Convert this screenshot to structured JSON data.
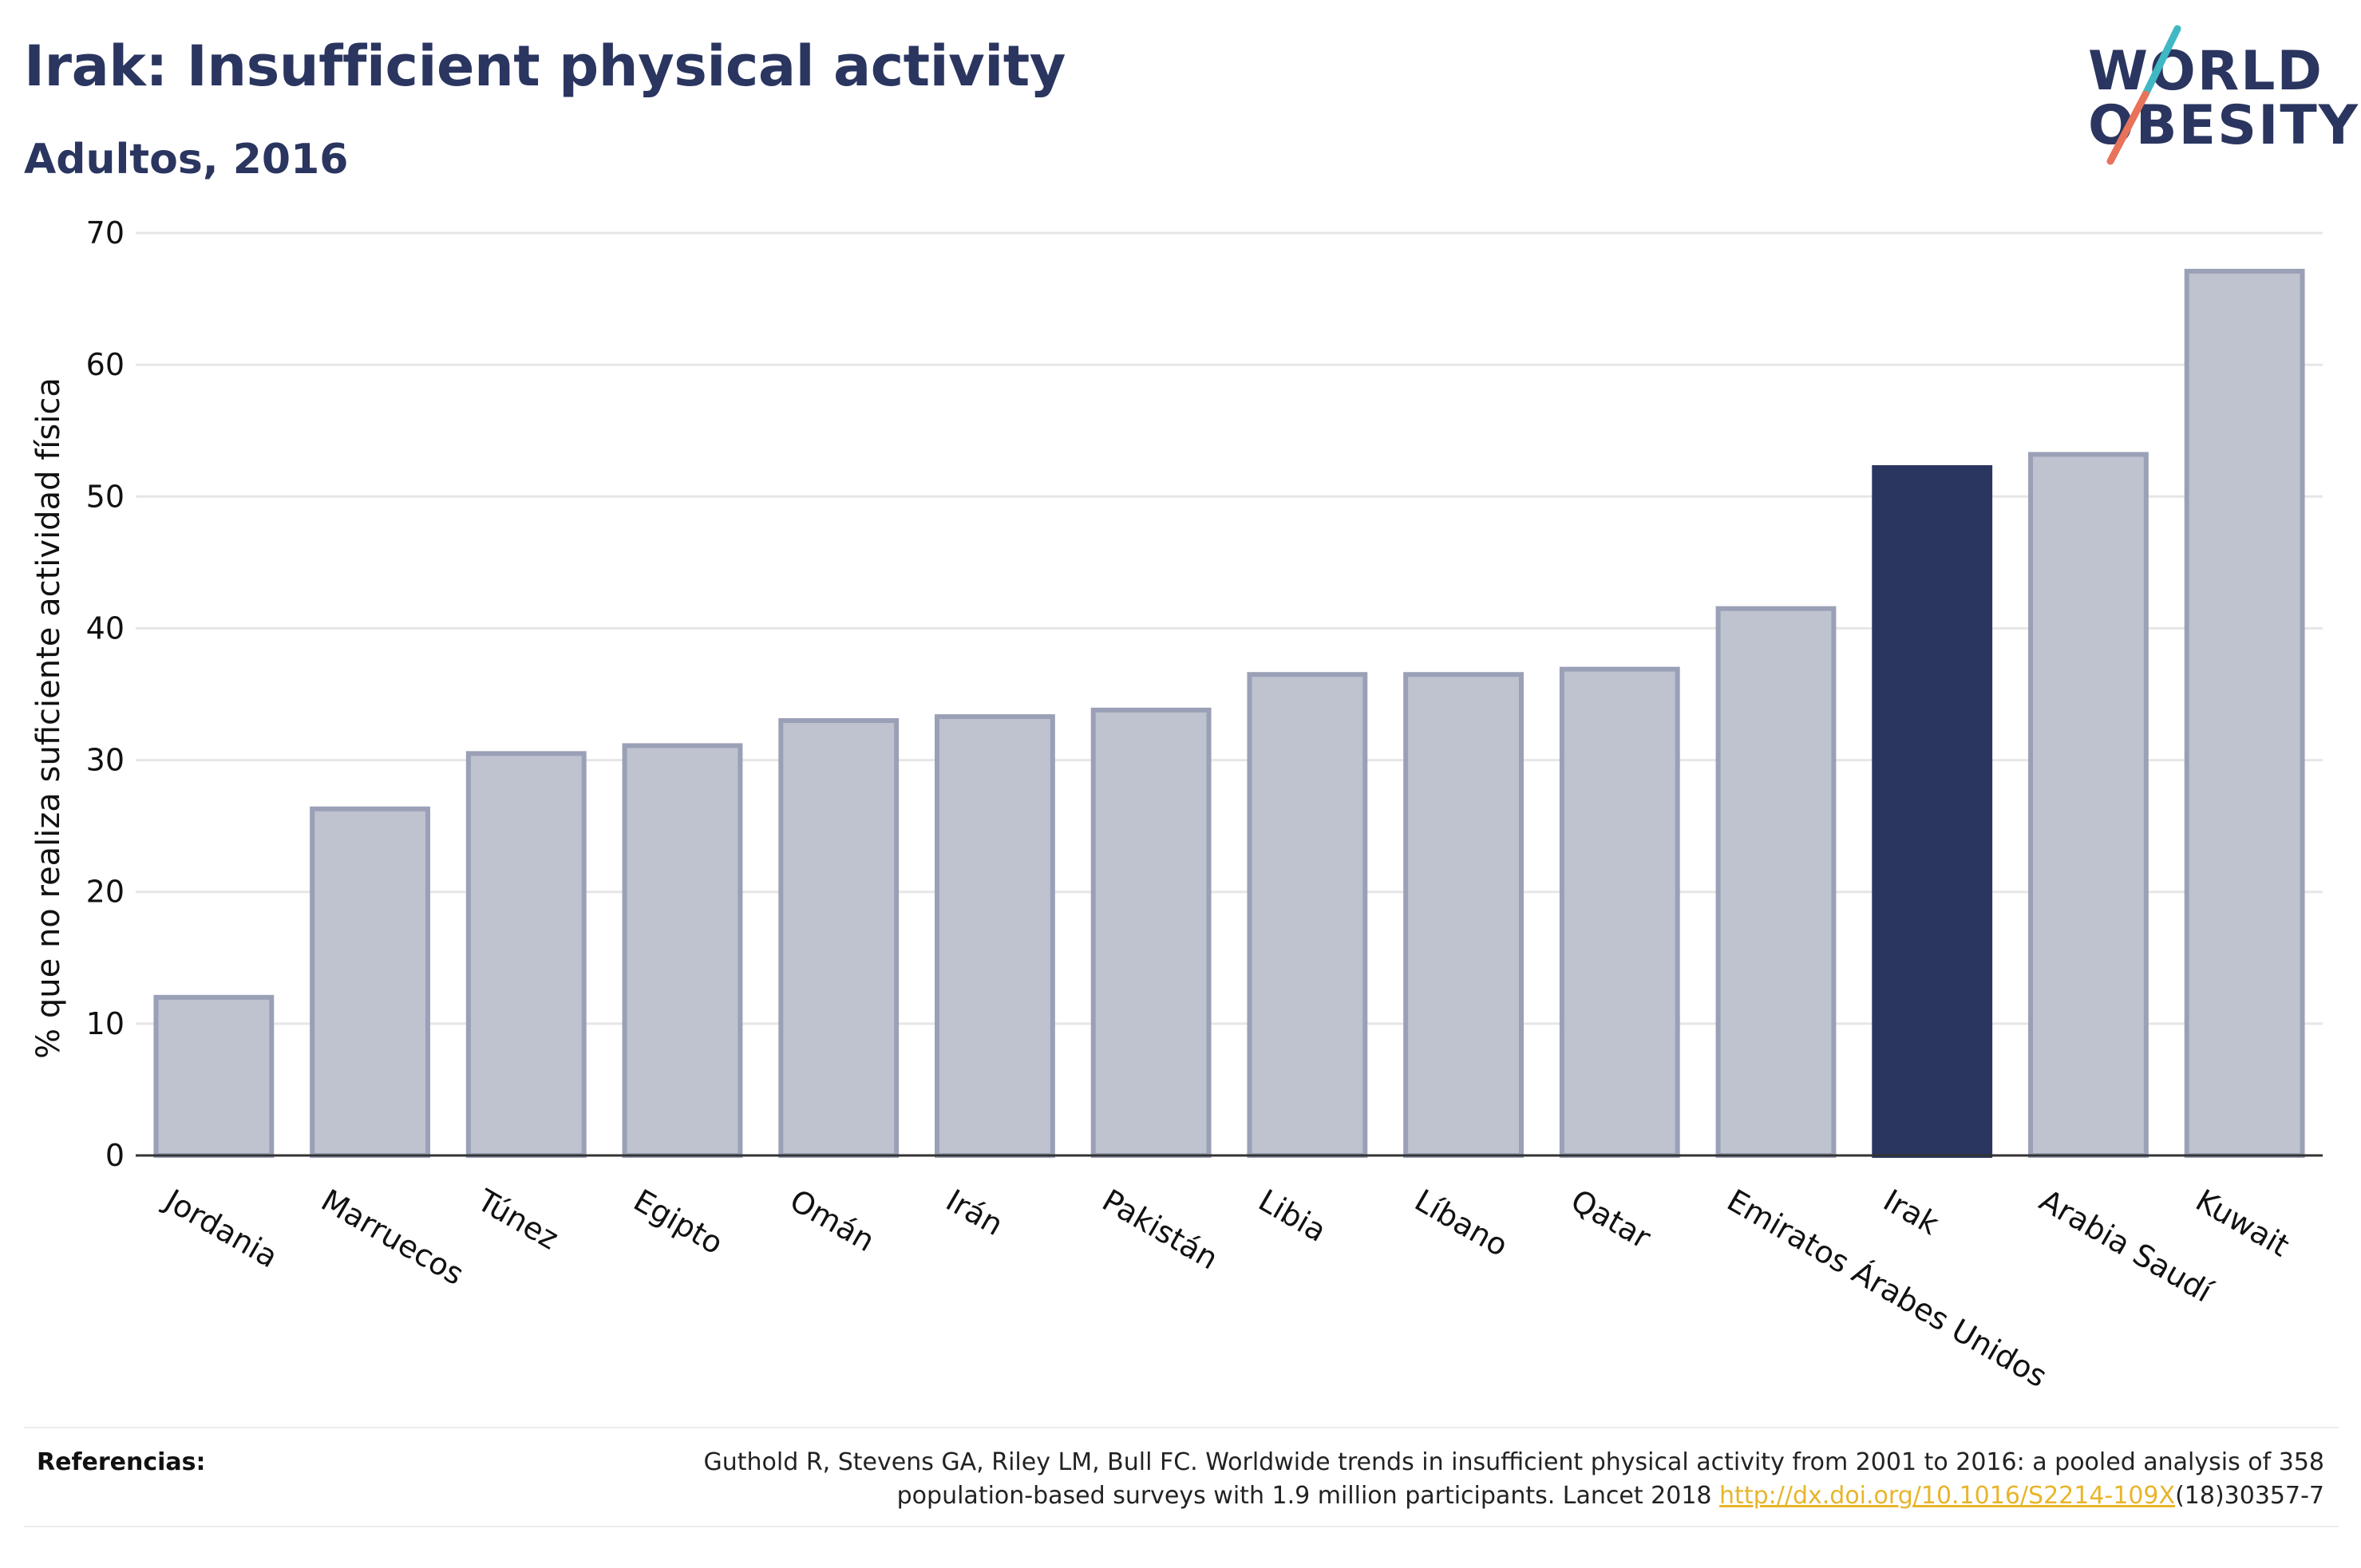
{
  "header": {
    "title": "Irak: Insufficient physical activity",
    "subtitle": "Adultos, 2016"
  },
  "logo": {
    "line1": "WORLD",
    "line2": "OBESITY",
    "accent_colors": [
      "#3fb8c4",
      "#e8735a"
    ]
  },
  "colors": {
    "highlight": "#2a3560",
    "bar_fill": "#bfc2cf",
    "bar_stroke": "#9aa0b6",
    "grid": "#e6e6e6",
    "axis": "#333333",
    "link": "#e8b52a"
  },
  "chart_data": {
    "type": "bar",
    "categories": [
      "Jordania",
      "Marruecos",
      "Túnez",
      "Egipto",
      "Omán",
      "Irán",
      "Pakistán",
      "Libia",
      "Líbano",
      "Qatar",
      "Emiratos Árabes Unidos",
      "Irak",
      "Arabia Saudí",
      "Kuwait"
    ],
    "values": [
      12.0,
      26.3,
      30.5,
      31.1,
      33.0,
      33.3,
      33.8,
      36.5,
      36.5,
      36.9,
      41.5,
      52.2,
      53.2,
      67.1
    ],
    "highlight": "Irak",
    "ylabel": "% que no realiza suficiente actividad física",
    "ylim": [
      0,
      70
    ],
    "yticks": [
      "0",
      "10",
      "20",
      "30",
      "40",
      "50",
      "60",
      "70"
    ],
    "grid": true,
    "legend": "none"
  },
  "references": {
    "label": "Referencias:",
    "text_line1": "Guthold R, Stevens GA, Riley LM, Bull FC. Worldwide trends in insufficient physical activity from 2001 to 2016: a pooled analysis of 358",
    "text_line2_before": "population-based surveys with 1.9 million participants. Lancet 2018 ",
    "link": "http://dx.doi.org/10.1016/S2214-109X",
    "text_line2_after": "(18)30357-7"
  }
}
